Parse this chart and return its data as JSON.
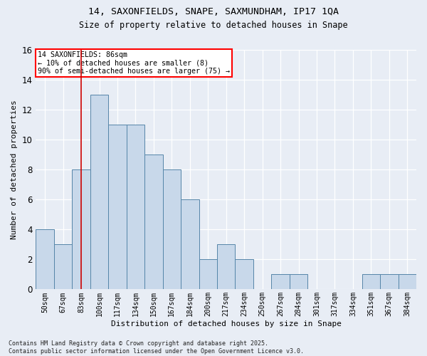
{
  "title1": "14, SAXONFIELDS, SNAPE, SAXMUNDHAM, IP17 1QA",
  "title2": "Size of property relative to detached houses in Snape",
  "xlabel": "Distribution of detached houses by size in Snape",
  "ylabel": "Number of detached properties",
  "bar_color": "#c8d8ea",
  "bar_edge_color": "#5585a8",
  "categories": [
    "50sqm",
    "67sqm",
    "83sqm",
    "100sqm",
    "117sqm",
    "134sqm",
    "150sqm",
    "167sqm",
    "184sqm",
    "200sqm",
    "217sqm",
    "234sqm",
    "250sqm",
    "267sqm",
    "284sqm",
    "301sqm",
    "317sqm",
    "334sqm",
    "351sqm",
    "367sqm",
    "384sqm"
  ],
  "values": [
    4,
    3,
    8,
    13,
    11,
    11,
    9,
    8,
    6,
    2,
    3,
    2,
    0,
    1,
    1,
    0,
    0,
    0,
    1,
    1,
    1
  ],
  "ylim": [
    0,
    16
  ],
  "yticks": [
    0,
    2,
    4,
    6,
    8,
    10,
    12,
    14,
    16
  ],
  "vline_x_index": 2,
  "annotation_text": "14 SAXONFIELDS: 86sqm\n← 10% of detached houses are smaller (8)\n90% of semi-detached houses are larger (75) →",
  "annotation_box_color": "white",
  "annotation_box_edge": "red",
  "footer": "Contains HM Land Registry data © Crown copyright and database right 2025.\nContains public sector information licensed under the Open Government Licence v3.0.",
  "background_color": "#e8edf5",
  "plot_background": "#e8edf5",
  "grid_color": "#ffffff",
  "vline_color": "#cc0000"
}
